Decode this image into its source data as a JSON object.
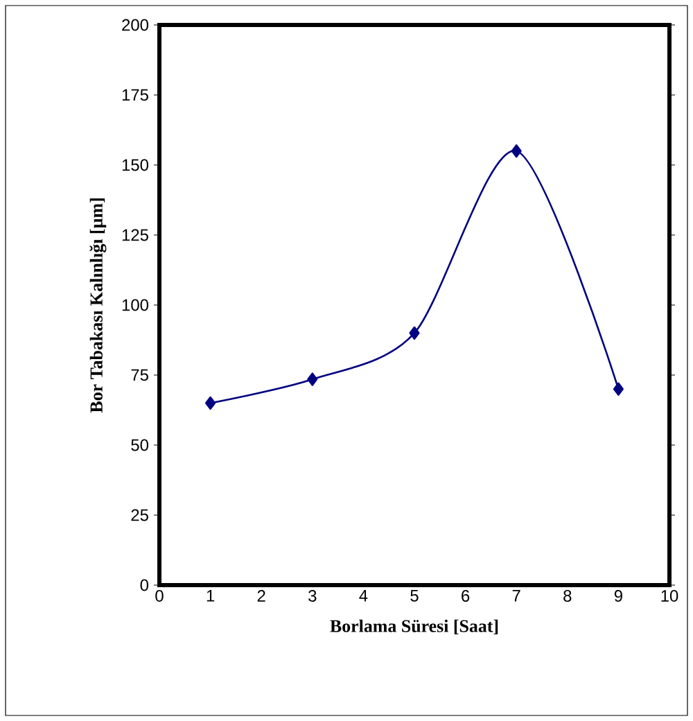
{
  "chart_data": {
    "type": "line",
    "xlabel": "Borlama Süresi [Saat]",
    "ylabel": "Bor Tabakası Kalınlığı [µm]",
    "x": [
      1,
      3,
      5,
      7,
      9
    ],
    "series": [
      {
        "color": "#000080",
        "values": [
          65,
          73.5,
          90,
          155,
          70
        ]
      }
    ],
    "xlim": [
      0,
      10
    ],
    "xticks": [
      0,
      1,
      2,
      3,
      4,
      5,
      6,
      7,
      8,
      9,
      10
    ],
    "ylim": [
      0,
      200
    ],
    "yticks": [
      0,
      25,
      50,
      75,
      100,
      125,
      150,
      175,
      200
    ],
    "marker": "diamond",
    "line_style": "solid"
  }
}
